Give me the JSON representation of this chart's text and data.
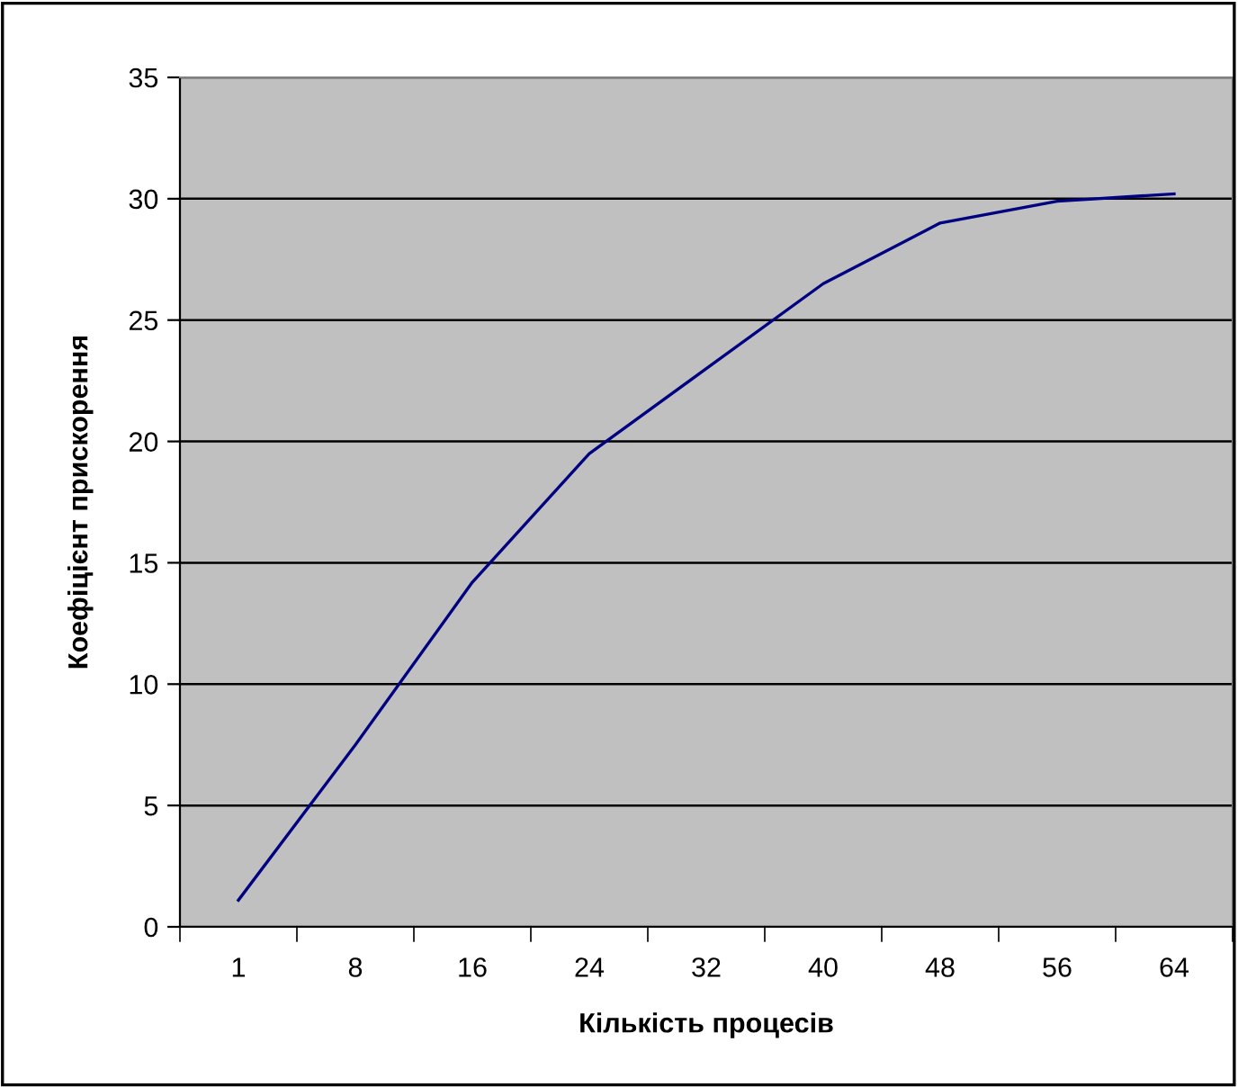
{
  "chart_data": {
    "type": "line",
    "xlabel": "Кількість процесів",
    "ylabel": "Коефіцієнт прискорення",
    "categories": [
      "1",
      "8",
      "16",
      "24",
      "32",
      "40",
      "48",
      "56",
      "64"
    ],
    "series": [
      {
        "color": "#000080",
        "values": [
          1.1,
          7.5,
          14.2,
          19.5,
          23.0,
          26.5,
          29.0,
          29.9,
          30.2
        ]
      }
    ],
    "ylim": [
      0,
      35
    ],
    "yticks": [
      0,
      5,
      10,
      15,
      20,
      25,
      30,
      35
    ],
    "grid": "y",
    "marker": "none",
    "line_style": "solid"
  }
}
